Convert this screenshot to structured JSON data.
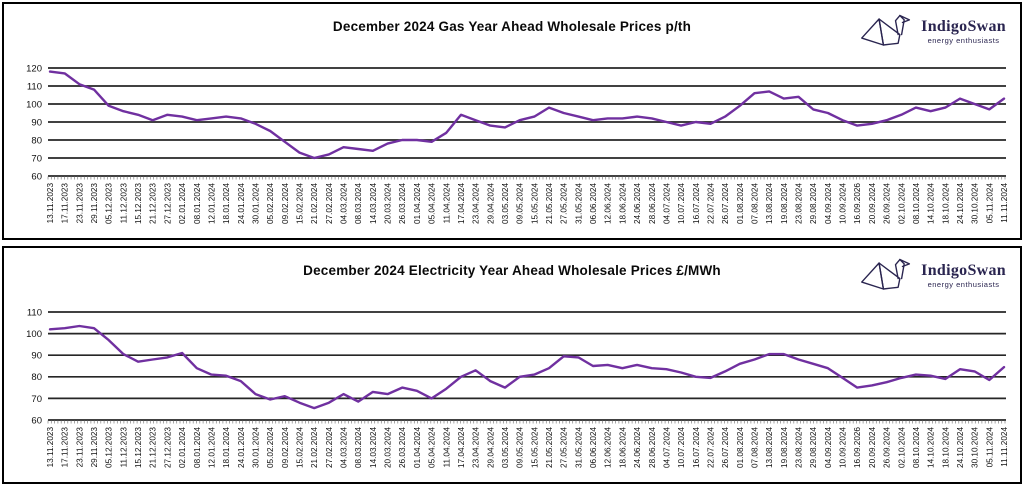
{
  "brand": {
    "name": "IndigoSwan",
    "tagline": "energy enthusiasts",
    "color": "#2a2550"
  },
  "chart_data": [
    {
      "type": "line",
      "title": "December 2024 Gas Year Ahead Wholesale Prices p/th",
      "ylabel": "p/th",
      "line_color": "#7030A0",
      "grid": true,
      "legend": false,
      "ylim": [
        60,
        120
      ],
      "y_ticks": [
        120,
        110,
        100,
        90,
        80,
        70,
        60
      ],
      "categories": [
        "13.11.2023",
        "17.11.2023",
        "23.11.2023",
        "29.11.2023",
        "05.12.2023",
        "11.12.2023",
        "15.12.2023",
        "21.12.2023",
        "27.12.2023",
        "02.01.2024",
        "08.01.2024",
        "12.01.2024",
        "18.01.2024",
        "24.01.2024",
        "30.01.2024",
        "05.02.2024",
        "09.02.2024",
        "15.02.2024",
        "21.02.2024",
        "27.02.2024",
        "04.03.2024",
        "08.03.2024",
        "14.03.2024",
        "20.03.2024",
        "26.03.2024",
        "01.04.2024",
        "05.04.2024",
        "11.04.2024",
        "17.04.2024",
        "23.04.2024",
        "29.04.2024",
        "03.05.2024",
        "09.05.2024",
        "15.05.2024",
        "21.05.2024",
        "27.05.2024",
        "31.05.2024",
        "06.06.2024",
        "12.06.2024",
        "18.06.2024",
        "24.06.2024",
        "28.06.2024",
        "04.07.2024",
        "10.07.2024",
        "16.07.2024",
        "22.07.2024",
        "26.07.2024",
        "01.08.2024",
        "07.08.2024",
        "13.08.2024",
        "19.08.2024",
        "23.08.2024",
        "29.08.2024",
        "04.09.2024",
        "10.09.2024",
        "16.09.2026",
        "20.09.2024",
        "26.09.2024",
        "02.10.2024",
        "08.10.2024",
        "14.10.2024",
        "18.10.2024",
        "24.10.2024",
        "30.10.2024",
        "05.11.2024",
        "11.11.2024"
      ],
      "values": [
        118,
        117,
        111,
        108,
        99,
        96,
        94,
        91,
        94,
        93,
        91,
        92,
        93,
        92,
        89,
        85,
        79,
        73,
        70,
        72,
        76,
        75,
        74,
        78,
        80,
        80,
        79,
        84,
        94,
        91,
        88,
        87,
        91,
        93,
        98,
        95,
        93,
        91,
        92,
        92,
        93,
        92,
        90,
        88,
        90,
        89,
        93,
        99,
        106,
        107,
        103,
        104,
        97,
        95,
        91,
        88,
        89,
        91,
        94,
        98,
        96,
        98,
        103,
        100,
        97,
        103
      ]
    },
    {
      "type": "line",
      "title": "December 2024 Electricity Year Ahead Wholesale Prices £/MWh",
      "ylabel": "£/MWh",
      "line_color": "#7030A0",
      "grid": true,
      "legend": false,
      "ylim": [
        60,
        110
      ],
      "y_ticks": [
        110,
        100,
        90,
        80,
        70,
        60
      ],
      "categories": [
        "13.11.2023",
        "17.11.2023",
        "23.11.2023",
        "29.11.2023",
        "05.12.2023",
        "11.12.2023",
        "15.12.2023",
        "21.12.2023",
        "27.12.2023",
        "02.01.2024",
        "08.01.2024",
        "12.01.2024",
        "18.01.2024",
        "24.01.2024",
        "30.01.2024",
        "05.02.2024",
        "09.02.2024",
        "15.02.2024",
        "21.02.2024",
        "27.02.2024",
        "04.03.2024",
        "08.03.2024",
        "14.03.2024",
        "20.03.2024",
        "26.03.2024",
        "01.04.2024",
        "05.04.2024",
        "11.04.2024",
        "17.04.2024",
        "23.04.2024",
        "29.04.2024",
        "03.05.2024",
        "09.05.2024",
        "15.05.2024",
        "21.05.2024",
        "27.05.2024",
        "31.05.2024",
        "06.06.2024",
        "12.06.2024",
        "18.06.2024",
        "24.06.2024",
        "28.06.2024",
        "04.07.2024",
        "10.07.2024",
        "16.07.2024",
        "22.07.2024",
        "26.07.2024",
        "01.08.2024",
        "07.08.2024",
        "13.08.2024",
        "19.08.2024",
        "23.08.2024",
        "29.08.2024",
        "04.09.2024",
        "10.09.2024",
        "16.09.2026",
        "20.09.2024",
        "26.09.2024",
        "02.10.2024",
        "08.10.2024",
        "14.10.2024",
        "18.10.2024",
        "24.10.2024",
        "30.10.2024",
        "05.11.2024",
        "11.11.2024"
      ],
      "values": [
        102,
        102.5,
        103.5,
        102.5,
        97,
        90.5,
        87,
        88,
        89,
        91,
        84,
        81,
        80.5,
        78,
        72,
        69.5,
        71,
        68,
        65.5,
        68,
        72,
        68.5,
        73,
        72,
        75,
        73.5,
        70,
        74.5,
        80,
        83,
        78,
        75,
        80,
        81,
        84,
        89.5,
        89,
        85,
        85.5,
        84,
        85.5,
        84,
        83.5,
        82,
        80,
        79.5,
        82.5,
        86,
        88,
        90.5,
        90.5,
        88,
        86,
        84,
        79.5,
        75,
        76,
        77.5,
        79.5,
        81,
        80.5,
        79,
        83.5,
        82.5,
        78.5,
        84.5
      ]
    }
  ]
}
